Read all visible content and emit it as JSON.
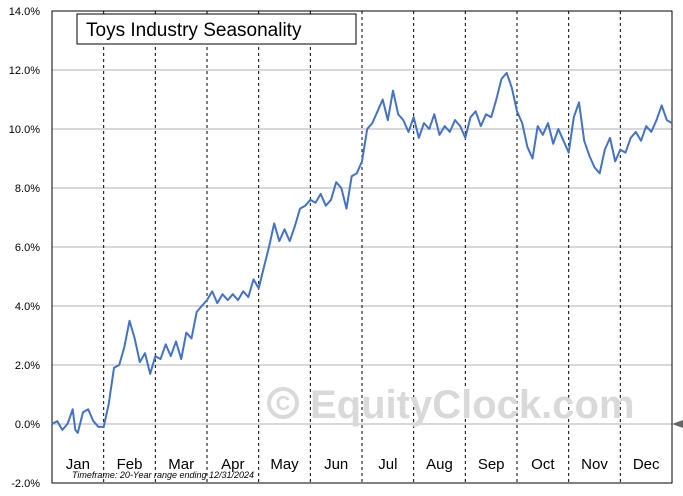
{
  "chart_data": {
    "type": "line",
    "title": "Toys Industry Seasonality",
    "footnote": "Timeframe: 20-Year range ending 12/31/2024",
    "watermark": "EquityClock.com",
    "xlabel": "",
    "ylabel": "",
    "y_ticks": [
      "-2.0%",
      "0.0%",
      "2.0%",
      "4.0%",
      "6.0%",
      "8.0%",
      "10.0%",
      "12.0%",
      "14.0%"
    ],
    "ylim": [
      -2,
      14
    ],
    "months": [
      "Jan",
      "Feb",
      "Mar",
      "Apr",
      "May",
      "Jun",
      "Jul",
      "Aug",
      "Sep",
      "Oct",
      "Nov",
      "Dec"
    ],
    "grid": true,
    "line_color": "#4472c4",
    "series": [
      {
        "x": [
          0,
          0.1,
          0.2,
          0.3,
          0.4,
          0.45,
          0.5,
          0.6,
          0.7,
          0.8,
          0.9,
          1.0,
          1.1,
          1.2,
          1.3,
          1.4,
          1.5,
          1.6,
          1.7,
          1.8,
          1.9,
          2.0,
          2.1,
          2.2,
          2.3,
          2.4,
          2.5,
          2.6,
          2.7,
          2.8,
          2.9,
          3.0,
          3.1,
          3.2,
          3.3,
          3.4,
          3.5,
          3.6,
          3.7,
          3.8,
          3.9,
          4.0,
          4.1,
          4.2,
          4.3,
          4.4,
          4.5,
          4.6,
          4.7,
          4.8,
          4.9,
          5.0,
          5.1,
          5.2,
          5.3,
          5.4,
          5.5,
          5.6,
          5.7,
          5.8,
          5.9,
          6.0,
          6.1,
          6.2,
          6.3,
          6.4,
          6.5,
          6.6,
          6.7,
          6.8,
          6.9,
          7.0,
          7.1,
          7.2,
          7.3,
          7.4,
          7.5,
          7.6,
          7.7,
          7.8,
          7.9,
          8.0,
          8.1,
          8.2,
          8.3,
          8.4,
          8.5,
          8.6,
          8.7,
          8.8,
          8.9,
          9.0,
          9.1,
          9.2,
          9.3,
          9.4,
          9.5,
          9.6,
          9.7,
          9.8,
          9.9,
          10.0,
          10.1,
          10.2,
          10.3,
          10.4,
          10.5,
          10.6,
          10.7,
          10.8,
          10.9,
          11.0,
          11.1,
          11.2,
          11.3,
          11.4,
          11.5,
          11.6,
          11.7,
          11.8,
          11.9,
          12.0
        ],
        "y": [
          0.0,
          0.1,
          -0.2,
          0.0,
          0.5,
          -0.2,
          -0.3,
          0.4,
          0.5,
          0.1,
          -0.1,
          -0.1,
          0.7,
          1.9,
          2.0,
          2.6,
          3.5,
          2.9,
          2.1,
          2.4,
          1.7,
          2.3,
          2.2,
          2.7,
          2.3,
          2.8,
          2.2,
          3.1,
          2.9,
          3.8,
          4.0,
          4.2,
          4.5,
          4.1,
          4.4,
          4.2,
          4.4,
          4.2,
          4.5,
          4.3,
          4.9,
          4.6,
          5.3,
          6.0,
          6.8,
          6.2,
          6.6,
          6.2,
          6.7,
          7.3,
          7.4,
          7.6,
          7.5,
          7.8,
          7.4,
          7.6,
          8.2,
          8.0,
          7.3,
          8.4,
          8.5,
          8.9,
          10.0,
          10.2,
          10.6,
          11.0,
          10.3,
          11.3,
          10.5,
          10.3,
          9.9,
          10.4,
          9.7,
          10.2,
          10.0,
          10.5,
          9.8,
          10.1,
          9.9,
          10.3,
          10.1,
          9.7,
          10.4,
          10.6,
          10.1,
          10.5,
          10.4,
          11.0,
          11.7,
          11.9,
          11.4,
          10.6,
          10.2,
          9.4,
          9.0,
          10.1,
          9.8,
          10.2,
          9.5,
          10.0,
          9.6,
          9.2,
          10.4,
          10.9,
          9.6,
          9.1,
          8.7,
          8.5,
          9.3,
          9.7,
          8.9,
          9.3,
          9.2,
          9.7,
          9.9,
          9.6,
          10.1,
          9.9,
          10.3,
          10.8,
          10.3,
          10.2
        ]
      }
    ]
  }
}
